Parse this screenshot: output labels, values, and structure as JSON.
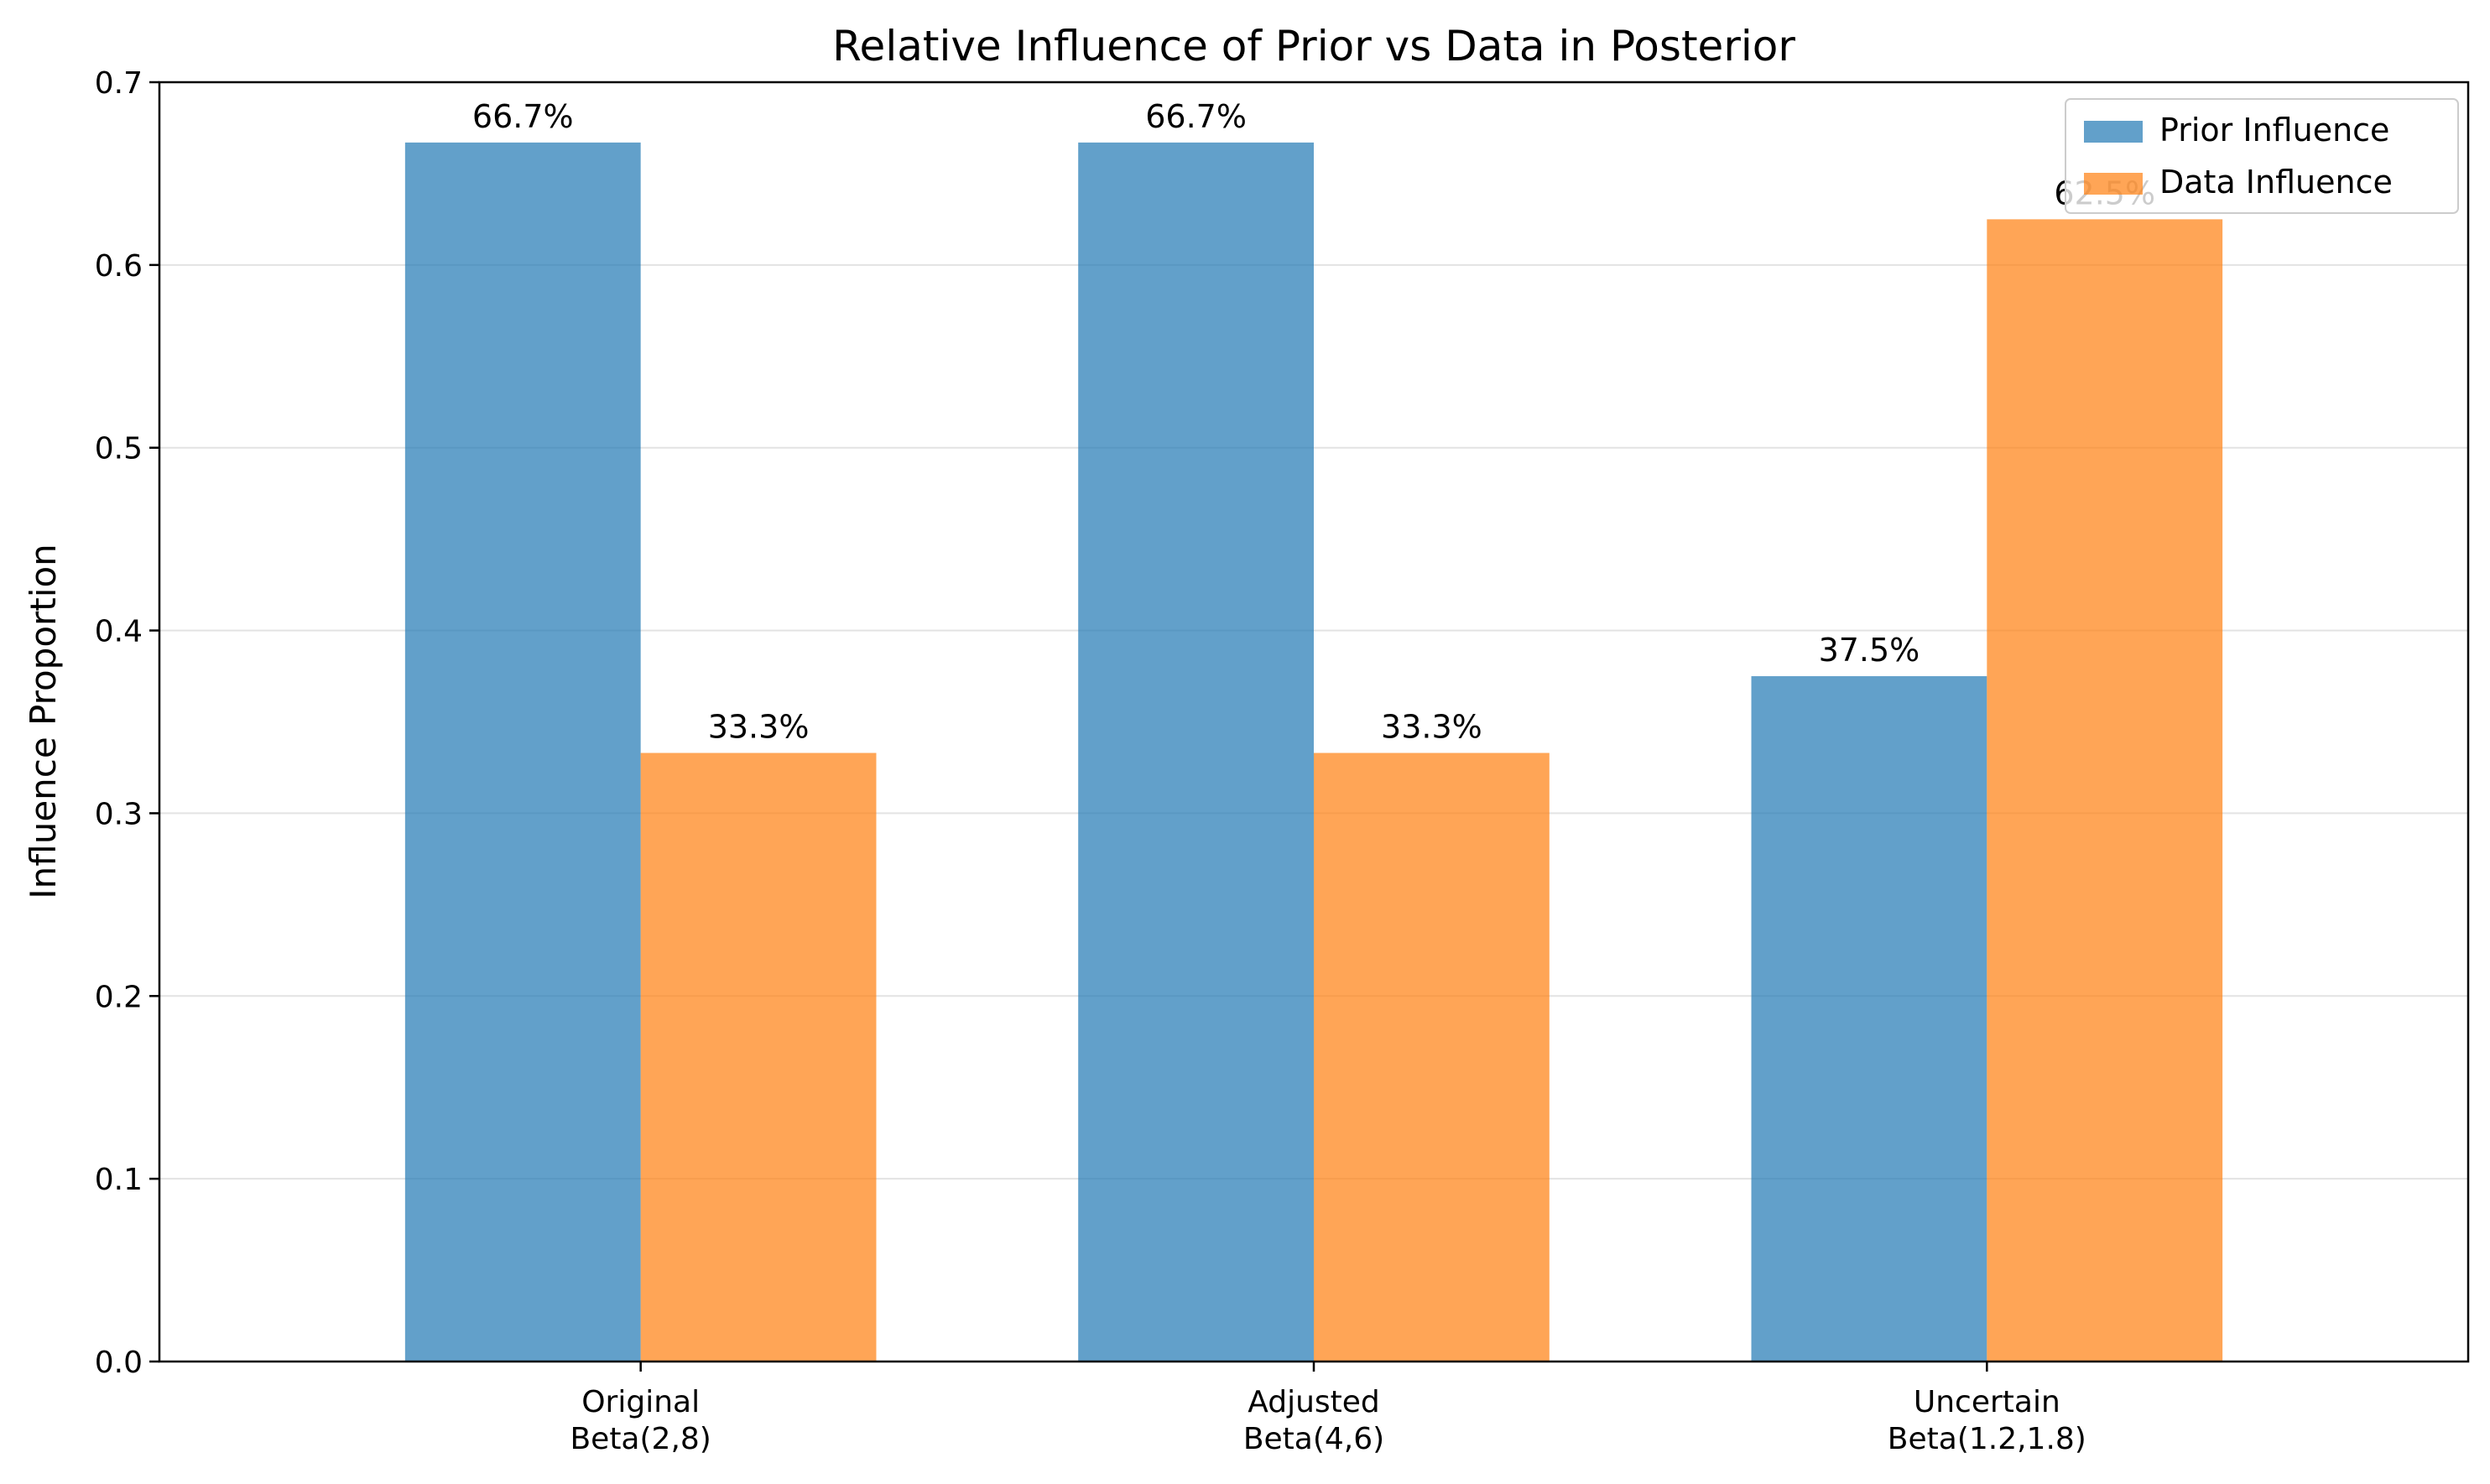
{
  "chart_data": {
    "type": "bar",
    "title": "Relative Influence of Prior vs Data in Posterior",
    "xlabel": "",
    "ylabel": "Influence Proportion",
    "ylim": [
      0,
      0.7
    ],
    "yticks": [
      0.0,
      0.1,
      0.2,
      0.3,
      0.4,
      0.5,
      0.6,
      0.7
    ],
    "ytick_labels": [
      "0.0",
      "0.1",
      "0.2",
      "0.3",
      "0.4",
      "0.5",
      "0.6",
      "0.7"
    ],
    "categories": [
      [
        "Original",
        "Beta(2,8)"
      ],
      [
        "Adjusted",
        "Beta(4,6)"
      ],
      [
        "Uncertain",
        "Beta(1.2,1.8)"
      ]
    ],
    "series": [
      {
        "name": "Prior Influence",
        "color": "#1f77b4",
        "opacity": 0.7,
        "values": [
          0.667,
          0.667,
          0.375
        ],
        "labels": [
          "66.7%",
          "66.7%",
          "37.5%"
        ]
      },
      {
        "name": "Data Influence",
        "color": "#ff7f0e",
        "opacity": 0.7,
        "values": [
          0.333,
          0.333,
          0.625
        ],
        "labels": [
          "33.3%",
          "33.3%",
          "62.5%"
        ]
      }
    ],
    "grid": "y",
    "legend_position": "upper right"
  }
}
